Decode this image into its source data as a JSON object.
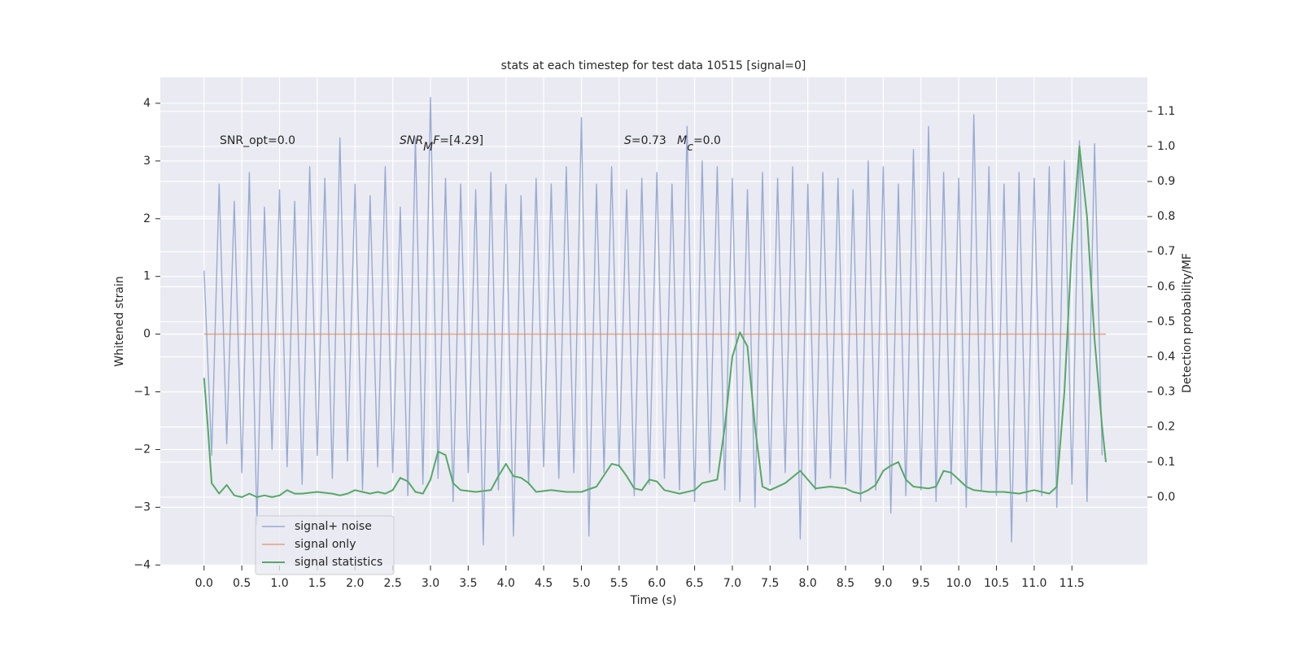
{
  "chart_data": {
    "type": "line",
    "title": "stats at each timestep for test data 10515 [signal=0]",
    "x_label": "Time (s)",
    "y_label": "Whitened strain",
    "y2_label": "Detection probability/MF",
    "xlim": [
      -0.58,
      12.5
    ],
    "ylim": [
      -4.01,
      4.45
    ],
    "y2lim": [
      -0.195,
      1.197
    ],
    "xticks": [
      {
        "value": 0,
        "label": "0.0"
      },
      0.5,
      {
        "value": 1,
        "label": "1.0"
      },
      1.5,
      {
        "value": 2,
        "label": "2.0"
      },
      2.5,
      {
        "value": 3,
        "label": "3.0"
      },
      3.5,
      {
        "value": 4,
        "label": "4.0"
      },
      4.5,
      {
        "value": 5,
        "label": "5.0"
      },
      5.5,
      {
        "value": 6,
        "label": "6.0"
      },
      6.5,
      {
        "value": 7,
        "label": "7.0"
      },
      7.5,
      {
        "value": 8,
        "label": "8.0"
      },
      8.5,
      {
        "value": 9,
        "label": "9.0"
      },
      9.5,
      {
        "value": 10,
        "label": "10.0"
      },
      10.5,
      {
        "value": 11,
        "label": "11.0"
      },
      11.5
    ],
    "yticks": [
      {
        "value": -4,
        "label": "−4"
      },
      {
        "value": -3,
        "label": "−3"
      },
      {
        "value": -2,
        "label": "−2"
      },
      {
        "value": -1,
        "label": "−1"
      },
      0,
      1,
      2,
      3,
      4
    ],
    "y2ticks": [
      {
        "value": 0,
        "label": "0.0"
      },
      0.1,
      0.2,
      0.3,
      0.4,
      0.5,
      0.6,
      0.7,
      0.8,
      0.9,
      {
        "value": 1,
        "label": "1.0"
      },
      1.1
    ],
    "grid": true,
    "legend": "lower left",
    "annotations": [
      [
        {
          "text": "SNR_opt=0.0",
          "style": "normal"
        }
      ],
      [
        {
          "text": "SNR",
          "style": "italic"
        },
        {
          "text": "M",
          "style": "sub"
        },
        {
          "text": "F",
          "style": "italic"
        },
        {
          "text": "=[4.29]",
          "style": "normal"
        }
      ],
      [
        {
          "text": "S",
          "style": "italic"
        },
        {
          "text": "=0.73   ",
          "style": "normal"
        },
        {
          "text": "M",
          "style": "italic"
        },
        {
          "text": "c",
          "style": "sub"
        },
        {
          "text": "=0.0",
          "style": "normal"
        }
      ]
    ],
    "series": [
      {
        "name": "signal+ noise",
        "color": "#8fa4cf",
        "x": [
          0,
          0.1,
          0.2,
          0.3,
          0.4,
          0.5,
          0.6,
          0.7,
          0.8,
          0.9,
          1,
          1.1,
          1.2,
          1.3,
          1.4,
          1.5,
          1.6,
          1.7,
          1.8,
          1.9,
          2,
          2.1,
          2.2,
          2.3,
          2.4,
          2.5,
          2.6,
          2.7,
          2.8,
          2.9,
          3,
          3.1,
          3.2,
          3.3,
          3.4,
          3.5,
          3.6,
          3.7,
          3.8,
          3.9,
          4,
          4.1,
          4.2,
          4.3,
          4.4,
          4.5,
          4.6,
          4.7,
          4.8,
          4.9,
          5,
          5.1,
          5.2,
          5.3,
          5.4,
          5.5,
          5.6,
          5.7,
          5.8,
          5.9,
          6,
          6.1,
          6.2,
          6.3,
          6.4,
          6.5,
          6.6,
          6.7,
          6.8,
          6.9,
          7,
          7.1,
          7.2,
          7.3,
          7.4,
          7.5,
          7.6,
          7.7,
          7.8,
          7.9,
          8,
          8.1,
          8.2,
          8.3,
          8.4,
          8.5,
          8.6,
          8.7,
          8.8,
          8.9,
          9,
          9.1,
          9.2,
          9.3,
          9.4,
          9.5,
          9.6,
          9.7,
          9.8,
          9.9,
          10,
          10.1,
          10.2,
          10.3,
          10.4,
          10.5,
          10.6,
          10.7,
          10.8,
          10.9,
          11,
          11.1,
          11.2,
          11.3,
          11.4,
          11.5,
          11.6,
          11.7,
          11.8,
          11.9
        ],
        "values": [
          1.1,
          -2.1,
          2.6,
          -1.9,
          2.3,
          -2.4,
          2.8,
          -3.3,
          2.2,
          -2.0,
          2.5,
          -2.3,
          2.3,
          -2.6,
          2.9,
          -2.1,
          2.7,
          -2.5,
          3.4,
          -2.2,
          2.6,
          -2.7,
          2.4,
          -2.3,
          2.9,
          -2.4,
          2.2,
          -2.8,
          3.4,
          -2.6,
          4.1,
          -2.5,
          2.7,
          -2.9,
          2.6,
          -2.4,
          2.5,
          -3.65,
          2.8,
          -2.7,
          2.6,
          -3.5,
          2.4,
          -2.6,
          2.7,
          -2.3,
          2.6,
          -2.5,
          2.9,
          -2.4,
          3.75,
          -3.5,
          2.6,
          -2.4,
          2.9,
          -2.3,
          2.5,
          -2.8,
          2.7,
          -2.6,
          2.8,
          -2.5,
          2.6,
          -2.7,
          3.6,
          -2.9,
          3.0,
          -2.4,
          2.9,
          -2.7,
          2.7,
          -2.9,
          2.5,
          -3.0,
          2.8,
          -2.6,
          2.7,
          -2.4,
          2.9,
          -3.55,
          2.6,
          -2.7,
          2.8,
          -2.5,
          2.7,
          -2.6,
          2.5,
          -2.9,
          3.0,
          -2.7,
          2.9,
          -3.1,
          2.6,
          -2.8,
          3.2,
          -2.7,
          3.6,
          -2.9,
          2.8,
          -2.6,
          2.7,
          -3.0,
          3.8,
          -2.7,
          2.9,
          -2.8,
          2.6,
          -3.6,
          2.8,
          -2.9,
          2.7,
          -2.8,
          2.9,
          -3.0,
          3.0,
          -2.6,
          3.35,
          -2.9,
          3.3,
          -2.1
        ]
      },
      {
        "name": "signal only",
        "color": "#dd8452",
        "x": [
          0,
          11.95
        ],
        "values": [
          0,
          0
        ]
      },
      {
        "name": "signal statistics",
        "color": "#55a868",
        "axis": "y2",
        "x": [
          0,
          0.05,
          0.1,
          0.2,
          0.3,
          0.4,
          0.5,
          0.6,
          0.7,
          0.8,
          0.9,
          1.0,
          1.1,
          1.2,
          1.3,
          1.5,
          1.7,
          1.8,
          1.9,
          2.0,
          2.1,
          2.2,
          2.3,
          2.4,
          2.5,
          2.6,
          2.7,
          2.8,
          2.9,
          3.0,
          3.1,
          3.2,
          3.3,
          3.4,
          3.6,
          3.8,
          3.9,
          4.0,
          4.1,
          4.2,
          4.3,
          4.4,
          4.6,
          4.8,
          5.0,
          5.2,
          5.4,
          5.5,
          5.6,
          5.7,
          5.8,
          5.9,
          6.0,
          6.1,
          6.3,
          6.5,
          6.6,
          6.8,
          6.9,
          7.0,
          7.1,
          7.2,
          7.3,
          7.4,
          7.5,
          7.7,
          7.9,
          8.0,
          8.1,
          8.3,
          8.5,
          8.6,
          8.7,
          8.8,
          8.9,
          9.0,
          9.1,
          9.2,
          9.3,
          9.4,
          9.6,
          9.7,
          9.8,
          9.9,
          10.0,
          10.1,
          10.2,
          10.4,
          10.6,
          10.8,
          11.0,
          11.2,
          11.3,
          11.4,
          11.5,
          11.6,
          11.7,
          11.8,
          11.9,
          11.95
        ],
        "values": [
          0.34,
          0.2,
          0.04,
          0.01,
          0.035,
          0.005,
          0.0,
          0.01,
          0.0,
          0.005,
          0.0,
          0.005,
          0.02,
          0.01,
          0.01,
          0.015,
          0.01,
          0.005,
          0.01,
          0.02,
          0.015,
          0.01,
          0.015,
          0.01,
          0.02,
          0.055,
          0.045,
          0.015,
          0.01,
          0.05,
          0.13,
          0.12,
          0.04,
          0.02,
          0.015,
          0.02,
          0.06,
          0.095,
          0.06,
          0.055,
          0.04,
          0.015,
          0.02,
          0.015,
          0.015,
          0.03,
          0.095,
          0.09,
          0.06,
          0.025,
          0.02,
          0.05,
          0.045,
          0.02,
          0.01,
          0.02,
          0.04,
          0.05,
          0.2,
          0.4,
          0.47,
          0.43,
          0.2,
          0.03,
          0.02,
          0.04,
          0.075,
          0.05,
          0.025,
          0.03,
          0.025,
          0.015,
          0.01,
          0.02,
          0.035,
          0.075,
          0.09,
          0.1,
          0.05,
          0.03,
          0.025,
          0.03,
          0.075,
          0.07,
          0.05,
          0.03,
          0.02,
          0.015,
          0.015,
          0.01,
          0.02,
          0.01,
          0.03,
          0.3,
          0.72,
          1.0,
          0.8,
          0.45,
          0.2,
          0.1
        ]
      }
    ]
  }
}
